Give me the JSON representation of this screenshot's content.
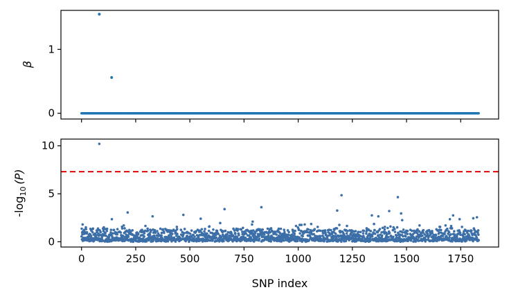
{
  "chart_data": [
    {
      "type": "scatter",
      "panel": "top",
      "ylabel": "β",
      "xlim": [
        -95,
        1925
      ],
      "ylim": [
        -0.09,
        1.61
      ],
      "yticks": [
        0,
        1
      ],
      "ytick_labels": [
        "0",
        "1"
      ],
      "xticks": [
        0,
        250,
        500,
        750,
        1000,
        1250,
        1500,
        1750
      ],
      "x_ticklabels_shown": false,
      "n_snps": 1834,
      "baseline_value": 0,
      "color": "#1f77b4",
      "series": [
        {
          "points": [
            [
              82,
              1.55
            ],
            [
              139,
              0.56
            ]
          ]
        }
      ]
    },
    {
      "type": "scatter",
      "panel": "bottom",
      "xlabel": "SNP index",
      "ylabel_main": "-log",
      "ylabel_sub": "10",
      "ylabel_tail": "(P)",
      "xlim": [
        -95,
        1925
      ],
      "ylim": [
        -0.55,
        10.7
      ],
      "yticks": [
        0,
        5,
        10
      ],
      "ytick_labels": [
        "0",
        "5",
        "10"
      ],
      "xticks": [
        0,
        250,
        500,
        750,
        1000,
        1250,
        1500,
        1750
      ],
      "xtick_labels": [
        "0",
        "250",
        "500",
        "750",
        "1000",
        "1250",
        "1500",
        "1750"
      ],
      "threshold": 7.3,
      "threshold_color": "#e00000",
      "color": "#3c6fa8",
      "n_snps": 1834,
      "series": [
        {
          "points": [
            [
              82,
              10.2
            ],
            [
              1200,
              4.85
            ],
            [
              1460,
              4.65
            ],
            [
              830,
              3.6
            ],
            [
              213,
              3.05
            ],
            [
              660,
              3.4
            ],
            [
              1180,
              3.25
            ],
            [
              1420,
              3.2
            ],
            [
              1475,
              2.95
            ],
            [
              1340,
              2.75
            ],
            [
              470,
              2.8
            ],
            [
              328,
              2.65
            ],
            [
              550,
              2.4
            ],
            [
              1370,
              2.65
            ],
            [
              1715,
              2.75
            ],
            [
              1700,
              2.35
            ],
            [
              1825,
              2.55
            ],
            [
              1808,
              2.45
            ],
            [
              140,
              2.35
            ],
            [
              1745,
              2.35
            ],
            [
              790,
              2.1
            ],
            [
              1350,
              1.85
            ],
            [
              1480,
              2.25
            ],
            [
              640,
              1.95
            ],
            [
              1060,
              1.85
            ],
            [
              1030,
              1.8
            ],
            [
              1007,
              1.75
            ],
            [
              1190,
              1.75
            ],
            [
              1400,
              1.55
            ],
            [
              5,
              1.8
            ],
            [
              20,
              1.5
            ],
            [
              1440,
              1.5
            ],
            [
              1457,
              1.5
            ],
            [
              195,
              1.7
            ],
            [
              295,
              1.65
            ],
            [
              440,
              1.55
            ],
            [
              590,
              1.6
            ],
            [
              1225,
              1.65
            ],
            [
              1560,
              1.7
            ],
            [
              1680,
              1.7
            ],
            [
              1015,
              1.75
            ],
            [
              1390,
              1.45
            ],
            [
              920,
              1.35
            ],
            [
              745,
              1.45
            ],
            [
              875,
              1.4
            ],
            [
              103,
              1.5
            ],
            [
              990,
              1.65
            ],
            [
              1090,
              1.55
            ]
          ]
        }
      ]
    }
  ]
}
